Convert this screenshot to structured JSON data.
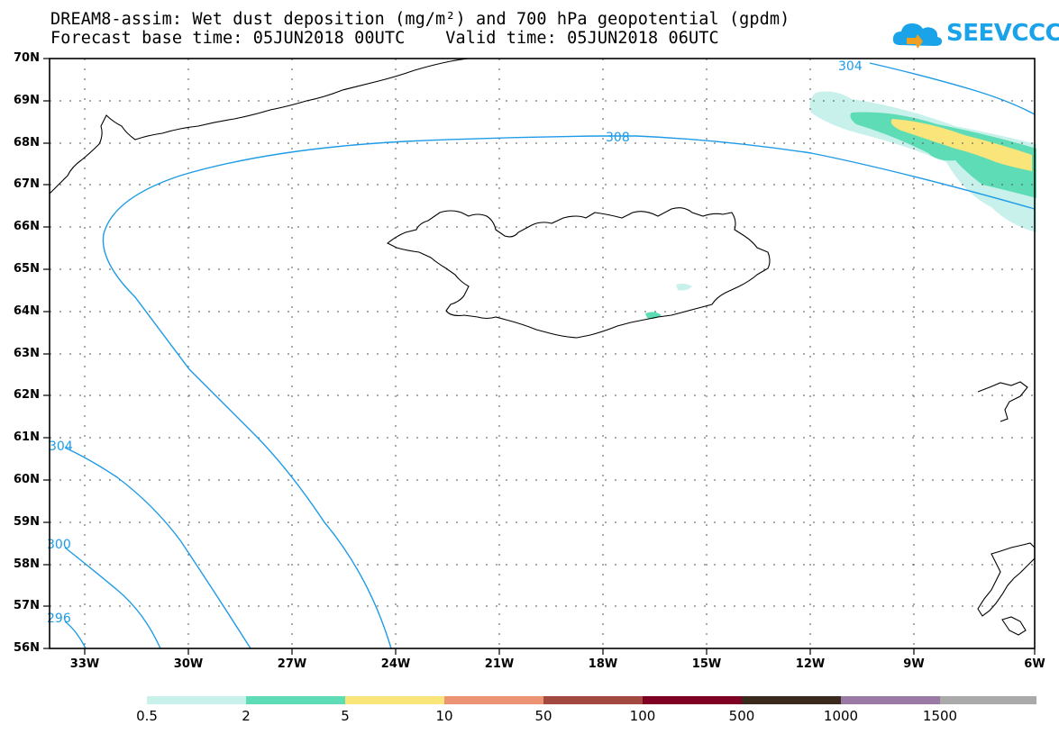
{
  "header": {
    "title_line1": "DREAM8-assim: Wet dust deposition (mg/m²) and 700 hPa geopotential (gpdm)",
    "title_line2": "Forecast base time: 05JUN2018 00UTC    Valid time: 05JUN2018 06UTC"
  },
  "logo": {
    "text": "SEEVCCC",
    "color": "#1aa3e8"
  },
  "map": {
    "lat_labels": [
      "70N",
      "69N",
      "68N",
      "67N",
      "66N",
      "65N",
      "64N",
      "63N",
      "62N",
      "61N",
      "60N",
      "59N",
      "58N",
      "57N",
      "56N"
    ],
    "lon_labels": [
      "33W",
      "30W",
      "27W",
      "24W",
      "21W",
      "18W",
      "15W",
      "12W",
      "9W",
      "6W"
    ],
    "contour_labels": [
      "304",
      "308",
      "304",
      "300",
      "296"
    ],
    "contour_color": "#1e9be6",
    "coastline_color": "#000000"
  },
  "colorbar": {
    "colors": [
      "#c8f1ec",
      "#5ddcb6",
      "#f9e57a",
      "#eb9373",
      "#a34a40",
      "#7e0023",
      "#3a2a1e",
      "#9a7aa4",
      "#aaaaaa"
    ],
    "labels": [
      "0.5",
      "2",
      "5",
      "10",
      "50",
      "100",
      "500",
      "1000",
      "1500"
    ]
  }
}
